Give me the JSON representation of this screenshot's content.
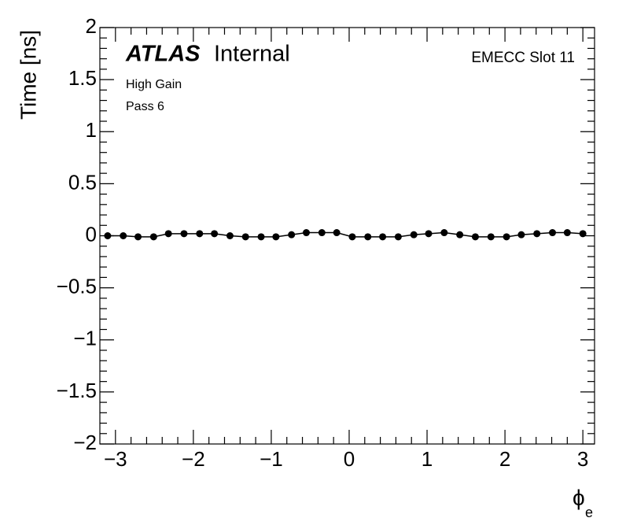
{
  "chart_data": {
    "type": "scatter",
    "experiment": "ATLAS",
    "status": "Internal",
    "annotations": [
      "High Gain",
      "Pass 6"
    ],
    "corner_label": "EMECC Slot 11",
    "y_label": "Time [ns]",
    "x_label": "ϕ",
    "x_label_subscript": "e",
    "color": "#000000",
    "x": [
      -3.1,
      -2.9,
      -2.71,
      -2.51,
      -2.32,
      -2.12,
      -1.92,
      -1.73,
      -1.53,
      -1.33,
      -1.13,
      -0.94,
      -0.74,
      -0.55,
      -0.35,
      -0.16,
      0.04,
      0.24,
      0.43,
      0.63,
      0.83,
      1.02,
      1.22,
      1.42,
      1.62,
      1.82,
      2.02,
      2.21,
      2.41,
      2.61,
      2.8,
      3.0
    ],
    "series": [
      {
        "name": "Time",
        "color": "#000000",
        "values": [
          0.0,
          0.0,
          -0.01,
          -0.01,
          0.02,
          0.02,
          0.02,
          0.02,
          0.0,
          -0.01,
          -0.01,
          -0.01,
          0.01,
          0.03,
          0.03,
          0.03,
          -0.01,
          -0.01,
          -0.01,
          -0.01,
          0.01,
          0.02,
          0.03,
          0.01,
          -0.01,
          -0.01,
          -0.01,
          0.01,
          0.02,
          0.03,
          0.03,
          0.02
        ]
      }
    ],
    "xlim": [
      -3.2,
      3.15
    ],
    "xticks": [
      {
        "value": -3,
        "label": "−3"
      },
      {
        "value": -2,
        "label": "−2"
      },
      {
        "value": -1,
        "label": "−1"
      },
      0,
      1,
      2,
      3
    ],
    "ylim": [
      -2,
      2
    ],
    "yticks": [
      {
        "value": -2,
        "label": "−2"
      },
      {
        "value": -1.5,
        "label": "−1.5"
      },
      {
        "value": -1,
        "label": "−1"
      },
      {
        "value": -0.5,
        "label": "−0.5"
      },
      0,
      0.5,
      1,
      1.5,
      2
    ],
    "grid": false
  }
}
